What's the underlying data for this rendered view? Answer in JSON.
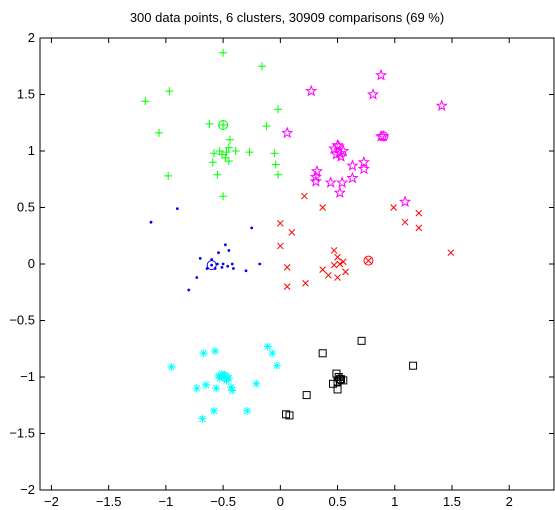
{
  "chart_data": {
    "type": "scatter",
    "title": "300 data points, 6 clusters, 30909 comparisons (69 %)",
    "xlabel": "",
    "ylabel": "",
    "xlim": [
      -2.1,
      2.4
    ],
    "ylim": [
      -2,
      2
    ],
    "xticks": [
      -2,
      -1.5,
      -1,
      -0.5,
      0,
      0.5,
      1,
      1.5,
      2
    ],
    "xtick_labels": [
      "−2",
      "−1.5",
      "−1",
      "−0.5",
      "0",
      "0.5",
      "1",
      "1.5",
      "2"
    ],
    "yticks": [
      -2,
      -1.5,
      -1,
      -0.5,
      0,
      0.5,
      1,
      1.5,
      2
    ],
    "ytick_labels": [
      "−2",
      "−1.5",
      "−1",
      "−0.5",
      "0",
      "0.5",
      "1",
      "1.5",
      "2"
    ],
    "grid": false,
    "series": [
      {
        "marker": "plus",
        "color": "#00ff00",
        "center": [
          -0.5,
          1.0
        ],
        "centroid": [
          -0.5,
          1.23
        ],
        "points": [
          [
            -0.5,
            1.87
          ],
          [
            -0.16,
            1.75
          ],
          [
            -0.97,
            1.53
          ],
          [
            -1.18,
            1.44
          ],
          [
            -0.02,
            1.37
          ],
          [
            -0.12,
            1.22
          ],
          [
            -1.06,
            1.16
          ],
          [
            -0.62,
            1.24
          ],
          [
            -0.44,
            1.1
          ],
          [
            -0.45,
            1.03
          ],
          [
            -0.39,
            1.0
          ],
          [
            -0.27,
            0.99
          ],
          [
            -0.58,
            0.98
          ],
          [
            -0.51,
            0.97
          ],
          [
            -0.48,
            0.94
          ],
          [
            -0.53,
            1.0
          ],
          [
            -0.47,
            0.99
          ],
          [
            -0.05,
            0.98
          ],
          [
            -0.45,
            0.91
          ],
          [
            -0.59,
            0.9
          ],
          [
            -0.04,
            0.88
          ],
          [
            -0.02,
            0.79
          ],
          [
            -0.55,
            0.79
          ],
          [
            -0.98,
            0.78
          ],
          [
            -0.5,
            0.6
          ]
        ]
      },
      {
        "marker": "star",
        "color": "#ff00ff",
        "center": [
          0.5,
          1.0
        ],
        "centroid": [
          0.9,
          1.13
        ],
        "points": [
          [
            0.88,
            1.67
          ],
          [
            0.27,
            1.53
          ],
          [
            0.81,
            1.5
          ],
          [
            1.41,
            1.4
          ],
          [
            0.06,
            1.16
          ],
          [
            0.5,
            1.05
          ],
          [
            0.47,
            1.02
          ],
          [
            0.52,
            0.98
          ],
          [
            0.55,
            1.0
          ],
          [
            0.49,
            0.97
          ],
          [
            0.51,
            1.04
          ],
          [
            0.53,
            0.95
          ],
          [
            0.73,
            0.9
          ],
          [
            0.63,
            0.87
          ],
          [
            0.73,
            0.84
          ],
          [
            0.32,
            0.82
          ],
          [
            0.31,
            0.77
          ],
          [
            0.63,
            0.76
          ],
          [
            0.54,
            0.72
          ],
          [
            0.44,
            0.72
          ],
          [
            0.31,
            0.73
          ],
          [
            1.09,
            0.55
          ],
          [
            0.52,
            0.63
          ],
          [
            0.88,
            1.13
          ]
        ]
      },
      {
        "marker": "cross",
        "color": "#ff0000",
        "center": [
          0.5,
          0.0
        ],
        "centroid": [
          0.77,
          0.03
        ],
        "points": [
          [
            0.21,
            0.6
          ],
          [
            0.37,
            0.5
          ],
          [
            0.99,
            0.5
          ],
          [
            1.21,
            0.45
          ],
          [
            1.21,
            0.32
          ],
          [
            1.09,
            0.37
          ],
          [
            0.0,
            0.36
          ],
          [
            0.1,
            0.28
          ],
          [
            0.0,
            0.16
          ],
          [
            0.47,
            0.12
          ],
          [
            0.5,
            0.06
          ],
          [
            0.55,
            0.02
          ],
          [
            0.52,
            0.0
          ],
          [
            0.47,
            -0.01
          ],
          [
            0.06,
            -0.03
          ],
          [
            1.49,
            0.1
          ],
          [
            0.37,
            -0.05
          ],
          [
            0.57,
            -0.07
          ],
          [
            0.42,
            -0.1
          ],
          [
            0.5,
            -0.12
          ],
          [
            0.22,
            -0.17
          ],
          [
            0.06,
            -0.2
          ]
        ]
      },
      {
        "marker": "dot",
        "color": "#0000ff",
        "center": [
          -0.5,
          0.0
        ],
        "centroid": [
          -0.6,
          -0.01
        ],
        "points": [
          [
            -0.9,
            0.49
          ],
          [
            -1.13,
            0.37
          ],
          [
            -0.25,
            0.32
          ],
          [
            -0.48,
            0.17
          ],
          [
            -0.7,
            0.05
          ],
          [
            -0.54,
            0.1
          ],
          [
            -0.6,
            0.04
          ],
          [
            -0.5,
            0.0
          ],
          [
            -0.46,
            -0.02
          ],
          [
            -0.51,
            -0.03
          ],
          [
            -0.41,
            -0.04
          ],
          [
            -0.64,
            -0.04
          ],
          [
            -0.18,
            0.0
          ],
          [
            -0.3,
            -0.06
          ],
          [
            -0.73,
            -0.12
          ],
          [
            -0.45,
            0.12
          ],
          [
            -0.57,
            -0.04
          ],
          [
            -0.55,
            0.0
          ],
          [
            -0.8,
            -0.23
          ],
          [
            -0.42,
            0.0
          ]
        ]
      },
      {
        "marker": "star",
        "color": "#00ffff",
        "center": [
          -0.5,
          -1.0
        ],
        "centroid": [
          -0.48,
          -1.0
        ],
        "points": [
          [
            -0.67,
            -0.79
          ],
          [
            -0.57,
            -0.77
          ],
          [
            -0.11,
            -0.73
          ],
          [
            -0.07,
            -0.79
          ],
          [
            -0.95,
            -0.91
          ],
          [
            -0.49,
            -0.99
          ],
          [
            -0.53,
            -1.01
          ],
          [
            -0.45,
            -1.01
          ],
          [
            -0.51,
            -0.97
          ],
          [
            -0.47,
            -1.03
          ],
          [
            -0.54,
            -0.99
          ],
          [
            -0.03,
            -0.9
          ],
          [
            -0.65,
            -1.07
          ],
          [
            -0.43,
            -1.09
          ],
          [
            -0.21,
            -1.06
          ],
          [
            -0.42,
            -1.12
          ],
          [
            -0.73,
            -1.1
          ],
          [
            -0.56,
            -1.1
          ],
          [
            -0.58,
            -1.3
          ],
          [
            -0.29,
            -1.3
          ],
          [
            -0.68,
            -1.37
          ]
        ]
      },
      {
        "marker": "square",
        "color": "#000000",
        "center": [
          0.5,
          -1.0
        ],
        "centroid": [
          0.52,
          -1.02
        ],
        "points": [
          [
            0.71,
            -0.68
          ],
          [
            0.37,
            -0.79
          ],
          [
            1.16,
            -0.9
          ],
          [
            0.49,
            -0.97
          ],
          [
            0.51,
            -1.0
          ],
          [
            0.53,
            -1.02
          ],
          [
            0.5,
            -1.04
          ],
          [
            0.55,
            -1.03
          ],
          [
            0.46,
            -1.06
          ],
          [
            0.5,
            -1.11
          ],
          [
            0.23,
            -1.16
          ],
          [
            0.05,
            -1.33
          ],
          [
            0.08,
            -1.34
          ],
          [
            0.52,
            -1.02
          ]
        ]
      }
    ]
  }
}
